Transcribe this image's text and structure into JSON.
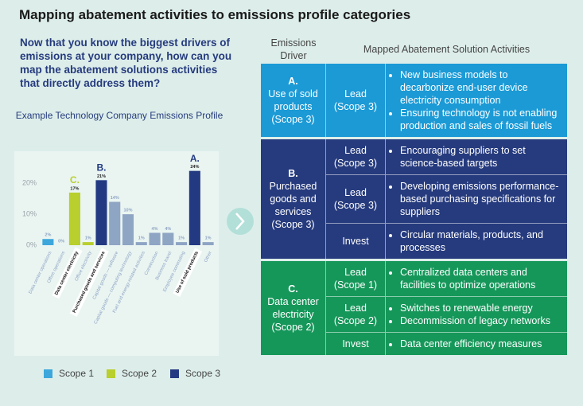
{
  "title": "Mapping abatement activities to emissions profile categories",
  "intro": "Now that you know the biggest drivers of emissions at your company, how can you map the abatement solutions activities that directly address them?",
  "chart_data": {
    "type": "bar",
    "title": "Example Technology Company Emissions Profile",
    "categories": [
      "Data center operations",
      "Office operations",
      "Data center electricity",
      "Office electricity",
      "Purchased goods and services",
      "Capital goods — software",
      "Capital goods — computing technology",
      "Fuel and energy-related activities",
      "Construction",
      "Business travel",
      "Employee commuting",
      "Use of sold products",
      "Other"
    ],
    "values": [
      2,
      0,
      17,
      1,
      21,
      14,
      10,
      1,
      4,
      4,
      1,
      24,
      1
    ],
    "value_labels": [
      "2%",
      "0%",
      "17%",
      "1%",
      "21%",
      "14%",
      "10%",
      "1%",
      "4%",
      "4%",
      "1%",
      "24%",
      "1%"
    ],
    "colors": [
      "#3da7dc",
      "#3da7dc",
      "#b8cf2d",
      "#b8cf2d",
      "#233a82",
      "#8fa5c4",
      "#8fa5c4",
      "#8fa5c4",
      "#8fa5c4",
      "#8fa5c4",
      "#8fa5c4",
      "#233a82",
      "#8fa5c4"
    ],
    "annotations": [
      null,
      null,
      "C.",
      null,
      "B.",
      null,
      null,
      null,
      null,
      null,
      null,
      "A.",
      null
    ],
    "ylim": [
      0,
      27
    ],
    "yticks": [
      {
        "value": 0,
        "label": "0%"
      },
      {
        "value": 10,
        "label": "10%"
      },
      {
        "value": 20,
        "label": "20%"
      }
    ],
    "legend": [
      {
        "name": "Scope 1",
        "color": "#3da7dc"
      },
      {
        "name": "Scope 2",
        "color": "#b8cf2d"
      },
      {
        "name": "Scope 3",
        "color": "#233a82"
      }
    ]
  },
  "table": {
    "headers": [
      "Emissions Driver",
      "Mapped Abatement Solution Activities"
    ],
    "groups": [
      {
        "letter": "A.",
        "driver": "Use of sold products (Scope 3)",
        "color": "#1b9ad6",
        "rows": [
          {
            "role": "Lead (Scope 3)",
            "activities": [
              "New business models to decarbonize end-user device electricity consumption",
              "Ensuring technology is not enabling production and sales of fossil fuels"
            ]
          }
        ]
      },
      {
        "letter": "B.",
        "driver": "Purchased goods and services (Scope 3)",
        "color": "#263b7e",
        "rows": [
          {
            "role": "Lead (Scope 3)",
            "activities": [
              "Encouraging suppliers to set science-based targets"
            ]
          },
          {
            "role": "Lead (Scope 3)",
            "activities": [
              "Developing emissions performance-based purchasing specifications for suppliers"
            ]
          },
          {
            "role": "Invest",
            "activities": [
              "Circular materials, products, and processes"
            ]
          }
        ]
      },
      {
        "letter": "C.",
        "driver": "Data center electricity (Scope 2)",
        "color": "#16975a",
        "rows": [
          {
            "role": "Lead (Scope 1)",
            "activities": [
              "Centralized data centers and facilities to optimize operations"
            ]
          },
          {
            "role": "Lead (Scope 2)",
            "activities": [
              "Switches to renewable energy",
              "Decommission of legacy networks"
            ]
          },
          {
            "role": "Invest",
            "activities": [
              "Data center efficiency measures"
            ]
          }
        ]
      }
    ]
  }
}
